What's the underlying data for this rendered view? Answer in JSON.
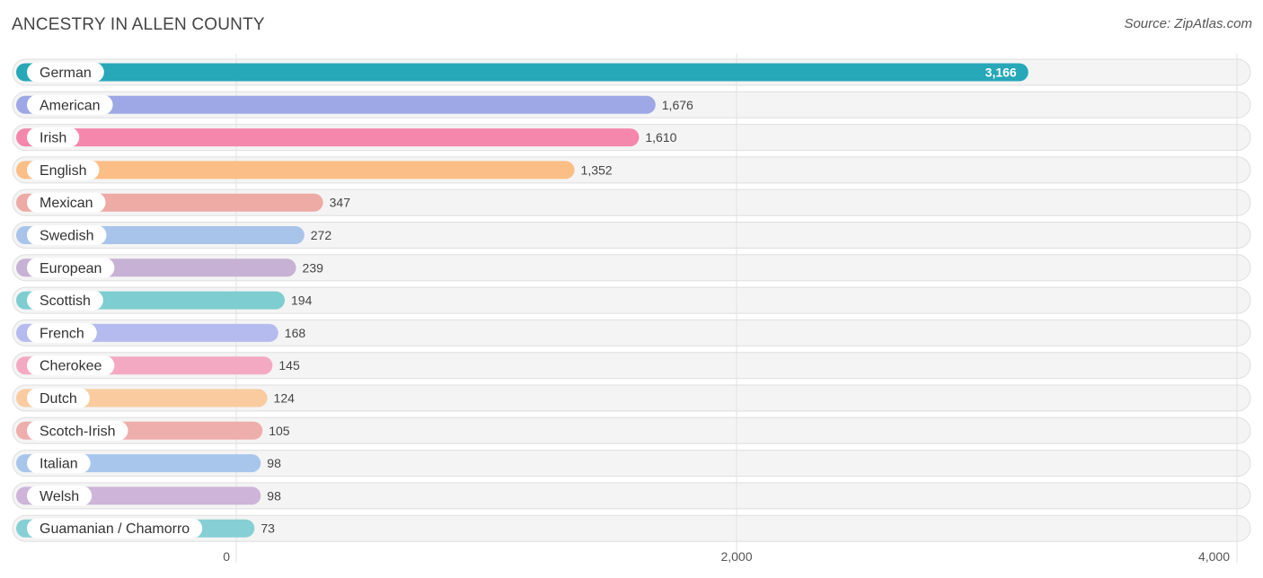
{
  "header": {
    "title": "ANCESTRY IN ALLEN COUNTY",
    "source": "Source: ZipAtlas.com"
  },
  "chart_data": {
    "type": "bar",
    "orientation": "horizontal",
    "title": "ANCESTRY IN ALLEN COUNTY",
    "categories": [
      "German",
      "American",
      "Irish",
      "English",
      "Mexican",
      "Swedish",
      "European",
      "Scottish",
      "French",
      "Cherokee",
      "Dutch",
      "Scotch-Irish",
      "Italian",
      "Welsh",
      "Guamanian / Chamorro"
    ],
    "values": [
      3166,
      1676,
      1610,
      1352,
      347,
      272,
      239,
      194,
      168,
      145,
      124,
      105,
      98,
      98,
      73
    ],
    "value_labels": [
      "3,166",
      "1,676",
      "1,610",
      "1,352",
      "347",
      "272",
      "239",
      "194",
      "168",
      "145",
      "124",
      "105",
      "98",
      "98",
      "73"
    ],
    "colors": [
      "#26a8b8",
      "#9ea8e6",
      "#f487ab",
      "#fbbe86",
      "#eeaaa5",
      "#a8c4ea",
      "#c7b1d4",
      "#7ecdd1",
      "#b5bbee",
      "#f4a9c3",
      "#f9cb9e",
      "#eeaeab",
      "#a8c6ec",
      "#cdb4d8",
      "#86cfd5"
    ],
    "xlim": [
      0,
      4000
    ],
    "xticks": [
      0,
      2000,
      4000
    ],
    "xtick_labels": [
      "0",
      "2,000",
      "4,000"
    ],
    "xlabel": "",
    "ylabel": "",
    "grid": true
  }
}
